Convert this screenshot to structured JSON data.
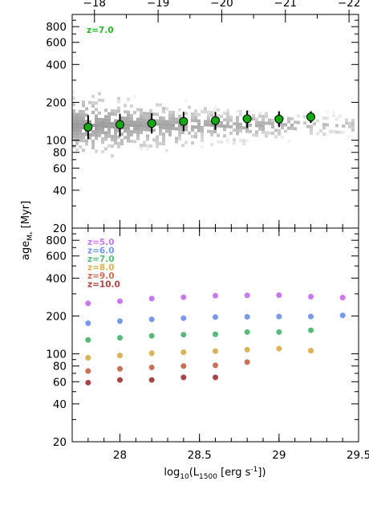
{
  "chart_data": [
    {
      "panel": "top",
      "type": "scatter",
      "annotation": "z=7.0",
      "annotation_color": "#22bb22",
      "point_color": "#11aa11",
      "x": [
        27.8,
        28.0,
        28.2,
        28.4,
        28.6,
        28.8,
        29.0,
        29.2
      ],
      "y": [
        127,
        133,
        136,
        141,
        143,
        148,
        147,
        153
      ],
      "y_lower": [
        102,
        107,
        113,
        118,
        121,
        125,
        127,
        137
      ],
      "y_upper": [
        158,
        162,
        164,
        168,
        168,
        172,
        170,
        170
      ],
      "xlim": [
        27.7,
        29.5
      ],
      "ylim": [
        20,
        1000
      ],
      "yscale": "log",
      "yticks": [
        "20",
        "40",
        "60",
        "80",
        "100",
        "200",
        "400",
        "600",
        "800"
      ],
      "top_xticks": [
        "−18",
        "−19",
        "−20",
        "−21",
        "−22"
      ],
      "top_xtick_values": [
        -18,
        -19,
        -20,
        -21,
        -22
      ],
      "background": "grey density distribution of individual galaxies"
    },
    {
      "panel": "bottom",
      "type": "scatter",
      "xlabel": "log10(L1500 [erg s-1])",
      "ylabel": "age_M* [Myr]",
      "xlim": [
        27.7,
        29.5
      ],
      "ylim": [
        20,
        1000
      ],
      "yscale": "log",
      "xticks": [
        "28",
        "28.5",
        "29",
        "29.5"
      ],
      "yticks": [
        "20",
        "40",
        "60",
        "80",
        "100",
        "200",
        "400",
        "600",
        "800"
      ],
      "series": [
        {
          "name": "z=5.0",
          "color": "#cc77ee",
          "x": [
            27.8,
            28.0,
            28.2,
            28.4,
            28.6,
            28.8,
            29.0,
            29.2,
            29.4
          ],
          "y": [
            252,
            262,
            275,
            282,
            290,
            292,
            293,
            285,
            280
          ]
        },
        {
          "name": "z=6.0",
          "color": "#7799ee",
          "x": [
            27.8,
            28.0,
            28.2,
            28.4,
            28.6,
            28.8,
            29.0,
            29.2,
            29.4
          ],
          "y": [
            175,
            182,
            188,
            192,
            196,
            197,
            198,
            198,
            202
          ]
        },
        {
          "name": "z=7.0",
          "color": "#55bb77",
          "x": [
            27.8,
            28.0,
            28.2,
            28.4,
            28.6,
            28.8,
            29.0,
            29.2
          ],
          "y": [
            129,
            134,
            139,
            142,
            143,
            149,
            149,
            154
          ]
        },
        {
          "name": "z=8.0",
          "color": "#ddb255",
          "x": [
            27.8,
            28.0,
            28.2,
            28.4,
            28.6,
            28.8,
            29.0,
            29.2
          ],
          "y": [
            93,
            97,
            101,
            103,
            105,
            108,
            110,
            106
          ]
        },
        {
          "name": "z=9.0",
          "color": "#cc6f55",
          "x": [
            27.8,
            28.0,
            28.2,
            28.4,
            28.6,
            28.8
          ],
          "y": [
            73,
            76,
            78,
            80,
            81,
            86
          ]
        },
        {
          "name": "z=10.0",
          "color": "#aa4444",
          "x": [
            27.8,
            28.0,
            28.2,
            28.4,
            28.6
          ],
          "y": [
            59,
            62,
            62,
            65,
            65
          ]
        }
      ]
    }
  ]
}
